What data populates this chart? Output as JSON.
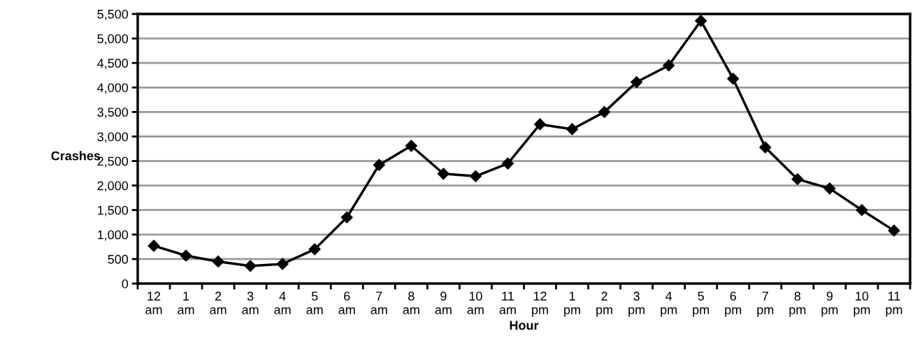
{
  "chart_data": {
    "type": "line",
    "xlabel": "Hour",
    "ylabel": "Crashes",
    "categories": [
      "12\nam",
      "1\nam",
      "2\nam",
      "3\nam",
      "4\nam",
      "5\nam",
      "6\nam",
      "7\nam",
      "8\nam",
      "9\nam",
      "10\nam",
      "11\nam",
      "12\npm",
      "1\npm",
      "2\npm",
      "3\npm",
      "4\npm",
      "5\npm",
      "6\npm",
      "7\npm",
      "8\npm",
      "9\npm",
      "10\npm",
      "11\npm"
    ],
    "series": [
      {
        "color": "#000000",
        "values": [
          770,
          570,
          450,
          360,
          400,
          700,
          1350,
          2420,
          2810,
          2240,
          2190,
          2450,
          3250,
          3150,
          3500,
          4110,
          4450,
          5360,
          4180,
          2780,
          2130,
          1940,
          1500,
          1080
        ]
      }
    ],
    "ylim": [
      0,
      5500
    ],
    "yticks": [
      {
        "value": 0,
        "label": "0"
      },
      {
        "value": 500,
        "label": "500"
      },
      {
        "value": 1000,
        "label": "1,000"
      },
      {
        "value": 1500,
        "label": "1,500"
      },
      {
        "value": 2000,
        "label": "2,000"
      },
      {
        "value": 2500,
        "label": "2,500"
      },
      {
        "value": 3000,
        "label": "3,000"
      },
      {
        "value": 3500,
        "label": "3,500"
      },
      {
        "value": 4000,
        "label": "4,000"
      },
      {
        "value": 4500,
        "label": "4,500"
      },
      {
        "value": 5000,
        "label": "5,000"
      },
      {
        "value": 5500,
        "label": "5,500"
      }
    ],
    "grid": "y",
    "marker": "diamond",
    "line_style": "solid"
  }
}
